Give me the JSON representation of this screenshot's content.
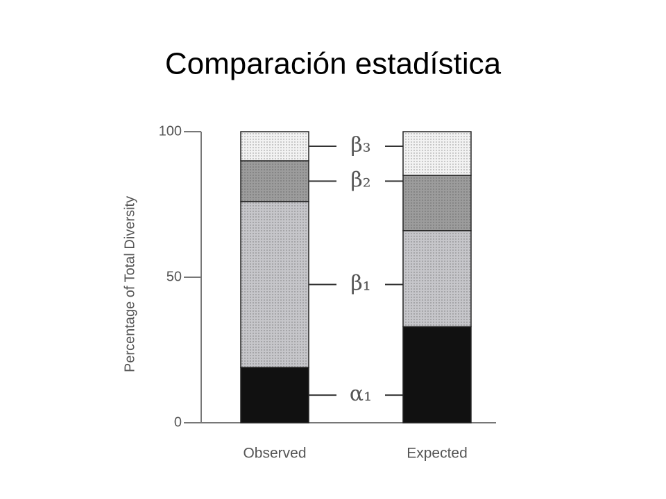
{
  "chart_data": {
    "type": "stacked_bar",
    "title": "Comparación estadística",
    "y_label": "Percentage of Total Diversity",
    "categories": [
      "Observed",
      "Expected"
    ],
    "series": [
      {
        "name": "α₁",
        "color": "#111111",
        "values": [
          19,
          33
        ]
      },
      {
        "name": "β₁",
        "color": "#c6c6ca",
        "values": [
          57,
          33
        ]
      },
      {
        "name": "β₂",
        "color": "#9c9c9c",
        "values": [
          14,
          19
        ]
      },
      {
        "name": "β₃",
        "color": "#f2f2f2",
        "values": [
          10,
          15
        ]
      }
    ],
    "ylim": [
      0,
      100
    ],
    "yticks": [
      0,
      50,
      100
    ]
  }
}
